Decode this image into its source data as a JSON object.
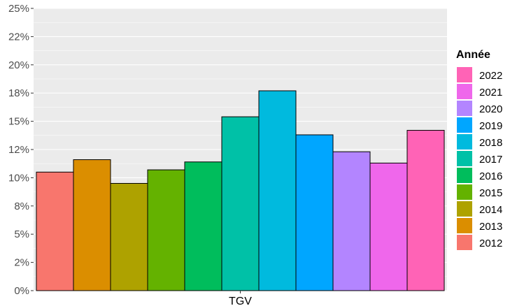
{
  "chart_data": {
    "type": "bar",
    "categories": [
      "TGV"
    ],
    "x_tick_labels": [
      "TGV"
    ],
    "y_tick_labels": [
      "0%",
      "2%",
      "5%",
      "8%",
      "10%",
      "12%",
      "15%",
      "18%",
      "20%",
      "22%",
      "25%"
    ],
    "ylim": [
      0,
      0.25
    ],
    "grid": true,
    "legend": {
      "title": "Année",
      "placement": "right",
      "order": [
        "2022",
        "2021",
        "2020",
        "2019",
        "2018",
        "2017",
        "2016",
        "2015",
        "2014",
        "2013",
        "2012"
      ]
    },
    "series": [
      {
        "name": "2012",
        "color": "#F8766D",
        "values": [
          0.105
        ]
      },
      {
        "name": "2013",
        "color": "#DB8E00",
        "values": [
          0.116
        ]
      },
      {
        "name": "2014",
        "color": "#AEA200",
        "values": [
          0.095
        ]
      },
      {
        "name": "2015",
        "color": "#64B200",
        "values": [
          0.107
        ]
      },
      {
        "name": "2016",
        "color": "#00BD5C",
        "values": [
          0.114
        ]
      },
      {
        "name": "2017",
        "color": "#00C1A7",
        "values": [
          0.154
        ]
      },
      {
        "name": "2018",
        "color": "#00BADE",
        "values": [
          0.177
        ]
      },
      {
        "name": "2019",
        "color": "#00A6FF",
        "values": [
          0.138
        ]
      },
      {
        "name": "2020",
        "color": "#B385FF",
        "values": [
          0.123
        ]
      },
      {
        "name": "2021",
        "color": "#EF67EB",
        "values": [
          0.113
        ]
      },
      {
        "name": "2022",
        "color": "#FF63B6",
        "values": [
          0.142
        ]
      }
    ]
  }
}
